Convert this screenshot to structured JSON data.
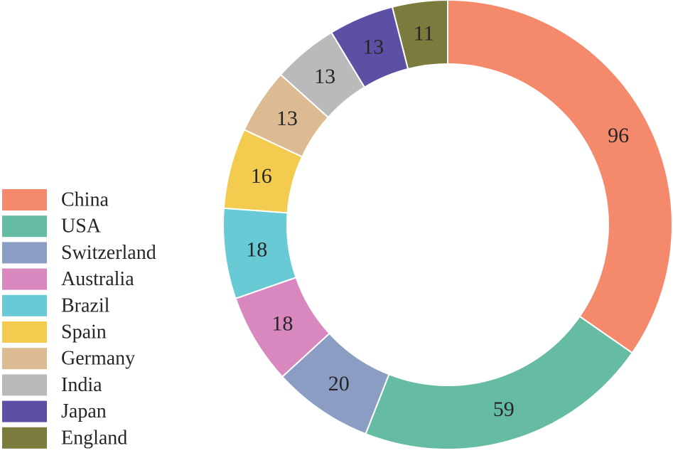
{
  "chart_data": {
    "type": "pie",
    "style": "donut",
    "legend_position": "left",
    "categories": [
      "China",
      "USA",
      "Switzerland",
      "Australia",
      "Brazil",
      "Spain",
      "Germany",
      "India",
      "Japan",
      "England"
    ],
    "values": [
      96,
      59,
      20,
      18,
      18,
      16,
      13,
      13,
      13,
      11
    ],
    "colors": [
      "#f4896b",
      "#66bca3",
      "#8c9dc4",
      "#d888bf",
      "#68cad4",
      "#f3cc4f",
      "#dcbb93",
      "#bababa",
      "#5d50a4",
      "#7b7b3e"
    ]
  }
}
